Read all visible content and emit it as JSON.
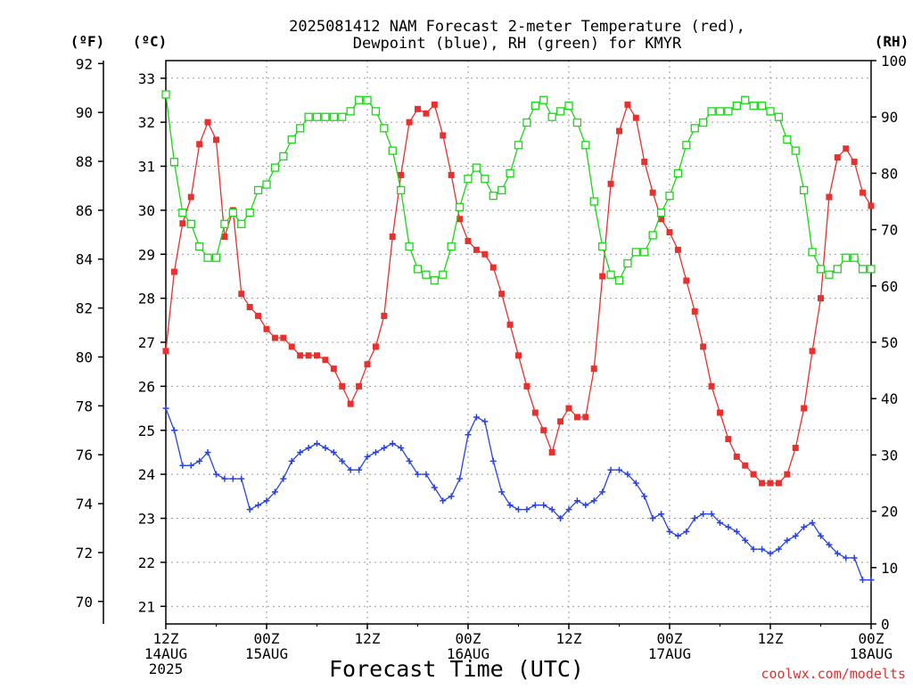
{
  "chart_data": {
    "type": "line",
    "title": "2025081412 NAM Forecast 2-meter Temperature (red),",
    "subtitle": "Dewpoint (blue), RH (green) for KMYR",
    "xlabel": "Forecast Time (UTC)",
    "credit": "coolwx.com/modelts",
    "axis_labels": {
      "f": "(ºF)",
      "c": "(ºC)",
      "rh": "(RH)"
    },
    "xlim": [
      0,
      84
    ],
    "ylim_c": [
      20.6,
      33.4
    ],
    "ylim_f": [
      69.08,
      92.12
    ],
    "ylim_rh": [
      0,
      100
    ],
    "x_ticks": [
      {
        "hour": 0,
        "lines": [
          "12Z",
          "14AUG",
          "2025"
        ]
      },
      {
        "hour": 12,
        "lines": [
          "00Z",
          "15AUG"
        ]
      },
      {
        "hour": 24,
        "lines": [
          "12Z"
        ]
      },
      {
        "hour": 36,
        "lines": [
          "00Z",
          "16AUG"
        ]
      },
      {
        "hour": 48,
        "lines": [
          "12Z"
        ]
      },
      {
        "hour": 60,
        "lines": [
          "00Z",
          "17AUG"
        ]
      },
      {
        "hour": 72,
        "lines": [
          "12Z"
        ]
      },
      {
        "hour": 84,
        "lines": [
          "00Z",
          "18AUG"
        ]
      }
    ],
    "y_ticks_f": [
      "70",
      "72",
      "74",
      "76",
      "78",
      "80",
      "82",
      "84",
      "86",
      "88",
      "90",
      "92"
    ],
    "y_ticks_c": [
      "21",
      "22",
      "23",
      "24",
      "25",
      "26",
      "27",
      "28",
      "29",
      "30",
      "31",
      "32",
      "33"
    ],
    "y_ticks_rh": [
      "0",
      "10",
      "20",
      "30",
      "40",
      "50",
      "60",
      "70",
      "80",
      "90",
      "100"
    ],
    "grid": true,
    "series": [
      {
        "name": "Temperature (red)",
        "unit": "C",
        "color": "#e8302e",
        "marker": "filled-square",
        "x": [
          0,
          1,
          2,
          3,
          4,
          5,
          6,
          7,
          8,
          9,
          10,
          11,
          12,
          13,
          14,
          15,
          16,
          17,
          18,
          19,
          20,
          21,
          22,
          23,
          24,
          25,
          26,
          27,
          28,
          29,
          30,
          31,
          32,
          33,
          34,
          35,
          36,
          37,
          38,
          39,
          40,
          41,
          42,
          43,
          44,
          45,
          46,
          47,
          48,
          49,
          50,
          51,
          52,
          53,
          54,
          55,
          56,
          57,
          58,
          59,
          60,
          61,
          62,
          63,
          64,
          65,
          66,
          67,
          68,
          69,
          70,
          71,
          72,
          73,
          74,
          75,
          76,
          77,
          78,
          79,
          80,
          81,
          82,
          83,
          84
        ],
        "y": [
          26.8,
          28.6,
          29.7,
          30.3,
          31.5,
          32.0,
          31.6,
          29.4,
          30.0,
          28.1,
          27.8,
          27.6,
          27.3,
          27.1,
          27.1,
          26.9,
          26.7,
          26.7,
          26.7,
          26.6,
          26.4,
          26.0,
          25.6,
          26.0,
          26.5,
          26.9,
          27.6,
          29.4,
          30.8,
          32.0,
          32.3,
          32.2,
          32.4,
          31.7,
          30.8,
          29.8,
          29.3,
          29.1,
          29.0,
          28.7,
          28.1,
          27.4,
          26.7,
          26.0,
          25.4,
          25.0,
          24.5,
          25.2,
          25.5,
          25.3,
          25.3,
          26.4,
          28.5,
          30.6,
          31.8,
          32.4,
          32.1,
          31.1,
          30.4,
          29.8,
          29.5,
          29.1,
          28.4,
          27.7,
          26.9,
          26.0,
          25.4,
          24.8,
          24.4,
          24.2,
          24.0,
          23.8,
          23.8,
          23.8,
          24.0,
          24.6,
          25.5,
          26.8,
          28.0,
          30.3,
          31.2,
          31.4,
          31.1,
          30.4,
          30.1
        ]
      },
      {
        "name": "Dewpoint (blue)",
        "unit": "C",
        "color": "#2a42e0",
        "marker": "plus",
        "x": [
          0,
          1,
          2,
          3,
          4,
          5,
          6,
          7,
          8,
          9,
          10,
          11,
          12,
          13,
          14,
          15,
          16,
          17,
          18,
          19,
          20,
          21,
          22,
          23,
          24,
          25,
          26,
          27,
          28,
          29,
          30,
          31,
          32,
          33,
          34,
          35,
          36,
          37,
          38,
          39,
          40,
          41,
          42,
          43,
          44,
          45,
          46,
          47,
          48,
          49,
          50,
          51,
          52,
          53,
          54,
          55,
          56,
          57,
          58,
          59,
          60,
          61,
          62,
          63,
          64,
          65,
          66,
          67,
          68,
          69,
          70,
          71,
          72,
          73,
          74,
          75,
          76,
          77,
          78,
          79,
          80,
          81,
          82,
          83,
          84
        ],
        "y": [
          25.5,
          25.0,
          24.2,
          24.2,
          24.3,
          24.5,
          24.0,
          23.9,
          23.9,
          23.9,
          23.2,
          23.3,
          23.4,
          23.6,
          23.9,
          24.3,
          24.5,
          24.6,
          24.7,
          24.6,
          24.5,
          24.3,
          24.1,
          24.1,
          24.4,
          24.5,
          24.6,
          24.7,
          24.6,
          24.3,
          24.0,
          24.0,
          23.7,
          23.4,
          23.5,
          23.9,
          24.9,
          25.3,
          25.2,
          24.3,
          23.6,
          23.3,
          23.2,
          23.2,
          23.3,
          23.3,
          23.2,
          23.0,
          23.2,
          23.4,
          23.3,
          23.4,
          23.6,
          24.1,
          24.1,
          24.0,
          23.8,
          23.5,
          23.0,
          23.1,
          22.7,
          22.6,
          22.7,
          23.0,
          23.1,
          23.1,
          22.9,
          22.8,
          22.7,
          22.5,
          22.3,
          22.3,
          22.2,
          22.3,
          22.5,
          22.6,
          22.8,
          22.9,
          22.6,
          22.4,
          22.2,
          22.1,
          22.1,
          21.6,
          21.6
        ]
      },
      {
        "name": "RH (green)",
        "unit": "%",
        "color": "#1dd51a",
        "marker": "open-square",
        "x": [
          0,
          1,
          2,
          3,
          4,
          5,
          6,
          7,
          8,
          9,
          10,
          11,
          12,
          13,
          14,
          15,
          16,
          17,
          18,
          19,
          20,
          21,
          22,
          23,
          24,
          25,
          26,
          27,
          28,
          29,
          30,
          31,
          32,
          33,
          34,
          35,
          36,
          37,
          38,
          39,
          40,
          41,
          42,
          43,
          44,
          45,
          46,
          47,
          48,
          49,
          50,
          51,
          52,
          53,
          54,
          55,
          56,
          57,
          58,
          59,
          60,
          61,
          62,
          63,
          64,
          65,
          66,
          67,
          68,
          69,
          70,
          71,
          72,
          73,
          74,
          75,
          76,
          77,
          78,
          79,
          80,
          81,
          82,
          83,
          84
        ],
        "y": [
          94,
          82,
          73,
          71,
          67,
          65,
          65,
          71,
          73,
          71,
          73,
          77,
          78,
          81,
          83,
          86,
          88,
          90,
          90,
          90,
          90,
          90,
          91,
          93,
          93,
          91,
          88,
          84,
          77,
          67,
          63,
          62,
          61,
          62,
          67,
          74,
          79,
          81,
          79,
          76,
          77,
          80,
          85,
          89,
          92,
          93,
          90,
          91,
          92,
          89,
          85,
          75,
          67,
          62,
          61,
          64,
          66,
          66,
          69,
          73,
          76,
          80,
          85,
          88,
          89,
          91,
          91,
          91,
          92,
          93,
          92,
          92,
          91,
          90,
          86,
          84,
          77,
          66,
          63,
          62,
          63,
          65,
          65,
          63,
          63
        ]
      }
    ]
  }
}
